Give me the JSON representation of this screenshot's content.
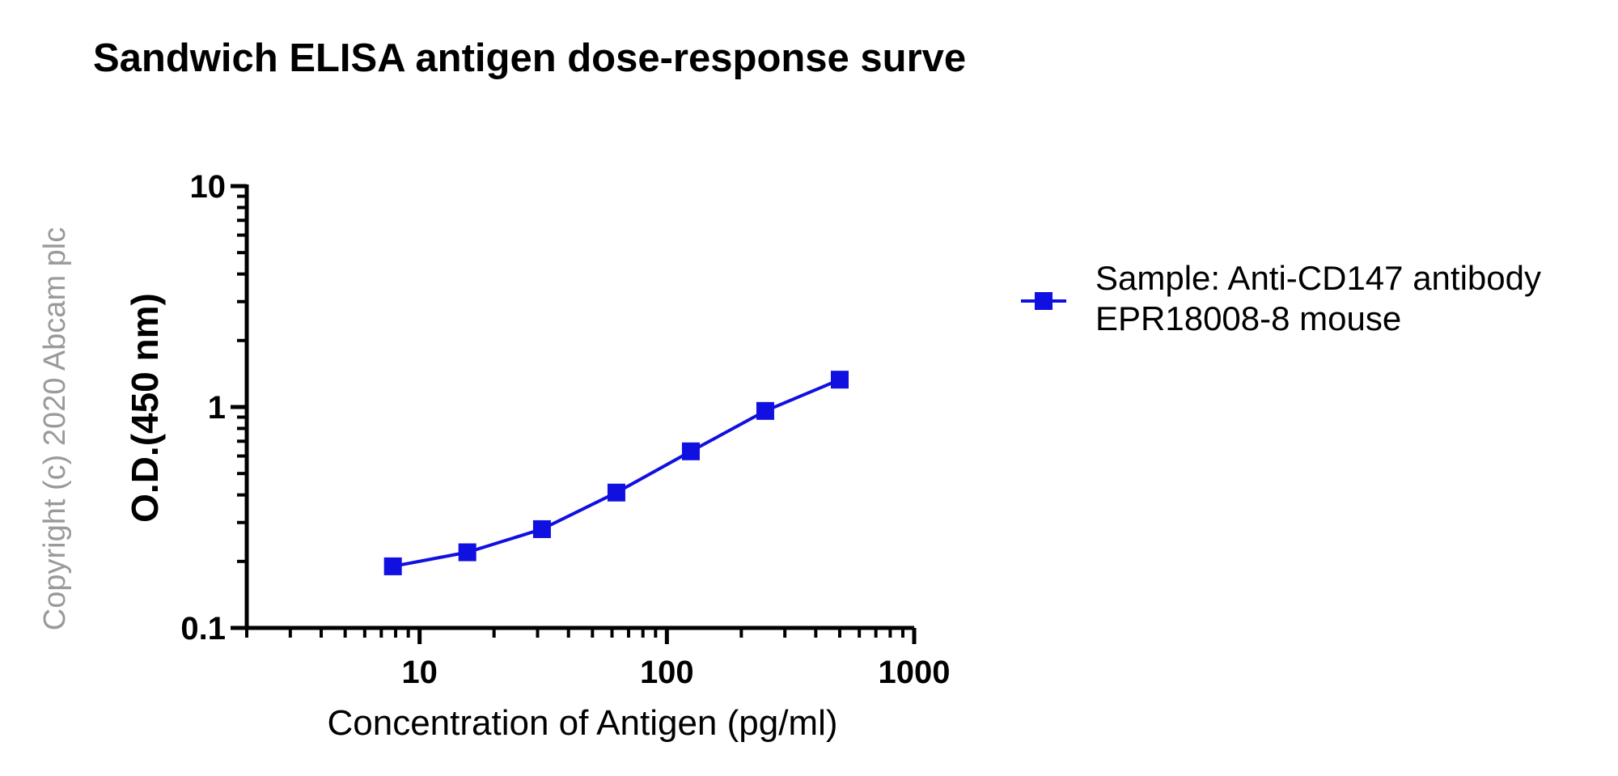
{
  "chart_data": {
    "type": "line",
    "title": "Sandwich ELISA antigen dose-response surve",
    "xlabel": "Concentration of Antigen (pg/ml)",
    "ylabel": "O.D.(450 nm)",
    "xscale": "log",
    "yscale": "log",
    "xlim": [
      2,
      1000
    ],
    "ylim": [
      0.1,
      10
    ],
    "x_tick_labels": [
      "10",
      "100",
      "1000"
    ],
    "y_tick_labels": [
      "0.1",
      "1",
      "10"
    ],
    "grid": false,
    "legend_position": "right",
    "color": "#1010e0",
    "series": [
      {
        "name": "Sample: Anti-CD147 antibody EPR18008-8 mouse",
        "legend_lines": [
          "Sample: Anti-CD147 antibody",
          "EPR18008-8 mouse"
        ],
        "marker": "square",
        "x": [
          7.8,
          15.6,
          31.25,
          62.5,
          125,
          250,
          500
        ],
        "values": [
          0.19,
          0.22,
          0.28,
          0.41,
          0.63,
          0.96,
          1.33
        ]
      }
    ]
  },
  "watermark": "Copyright (c) 2020 Abcam plc"
}
